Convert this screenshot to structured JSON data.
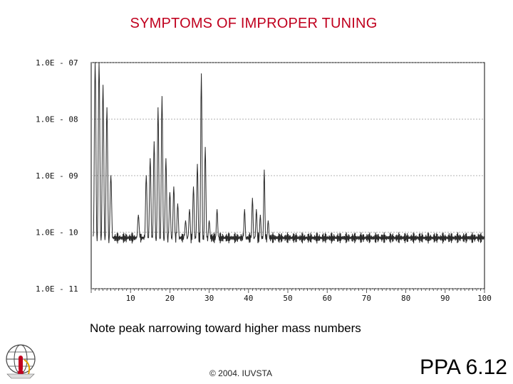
{
  "slide": {
    "title": "SYMPTOMS OF IMPROPER TUNING",
    "note": "Note peak narrowing toward higher mass numbers",
    "copyright": "© 2004. IUVSTA",
    "slide_id": "PPA 6.12",
    "logo_icon": "iuvsta-globe-logo",
    "title_color": "#c0001e"
  },
  "chart_data": {
    "type": "line",
    "title": "",
    "xlabel": "",
    "ylabel": "",
    "xlim": [
      0,
      100
    ],
    "y_scale": "log",
    "ylim_exponent": [
      -11,
      -7
    ],
    "x_ticks": [
      10,
      20,
      30,
      40,
      50,
      60,
      70,
      80,
      90,
      100
    ],
    "x_tick_labels": [
      "10",
      "20",
      "30",
      "40",
      "50",
      "60",
      "70",
      "80",
      "90",
      "100"
    ],
    "y_ticks_exponent": [
      -7,
      -8,
      -9,
      -10,
      -11
    ],
    "y_tick_labels": [
      "1.0E - 07",
      "1.0E - 08",
      "1.0E - 09",
      "1.0E - 10",
      "1.0E - 11"
    ],
    "grid": true,
    "baseline_exponent": -10.1,
    "series": [
      {
        "peaks": [
          {
            "x": 1,
            "y_exp": -7.0
          },
          {
            "x": 2,
            "y_exp": -7.0
          },
          {
            "x": 3,
            "y_exp": -7.4
          },
          {
            "x": 4,
            "y_exp": -7.8
          },
          {
            "x": 5,
            "y_exp": -9.0
          },
          {
            "x": 12,
            "y_exp": -9.7
          },
          {
            "x": 14,
            "y_exp": -9.0
          },
          {
            "x": 15,
            "y_exp": -8.7
          },
          {
            "x": 16,
            "y_exp": -8.4
          },
          {
            "x": 17,
            "y_exp": -7.8
          },
          {
            "x": 18,
            "y_exp": -7.6
          },
          {
            "x": 19,
            "y_exp": -8.7
          },
          {
            "x": 20,
            "y_exp": -9.3
          },
          {
            "x": 21,
            "y_exp": -9.2
          },
          {
            "x": 22,
            "y_exp": -9.5
          },
          {
            "x": 24,
            "y_exp": -9.8
          },
          {
            "x": 25,
            "y_exp": -9.6
          },
          {
            "x": 26,
            "y_exp": -9.2
          },
          {
            "x": 27,
            "y_exp": -8.8
          },
          {
            "x": 28,
            "y_exp": -7.2
          },
          {
            "x": 29,
            "y_exp": -8.5
          },
          {
            "x": 30,
            "y_exp": -9.8
          },
          {
            "x": 32,
            "y_exp": -9.6
          },
          {
            "x": 39,
            "y_exp": -9.6
          },
          {
            "x": 41,
            "y_exp": -9.4
          },
          {
            "x": 42,
            "y_exp": -9.6
          },
          {
            "x": 43,
            "y_exp": -9.7
          },
          {
            "x": 44,
            "y_exp": -8.9
          },
          {
            "x": 45,
            "y_exp": -9.8
          }
        ]
      }
    ]
  }
}
